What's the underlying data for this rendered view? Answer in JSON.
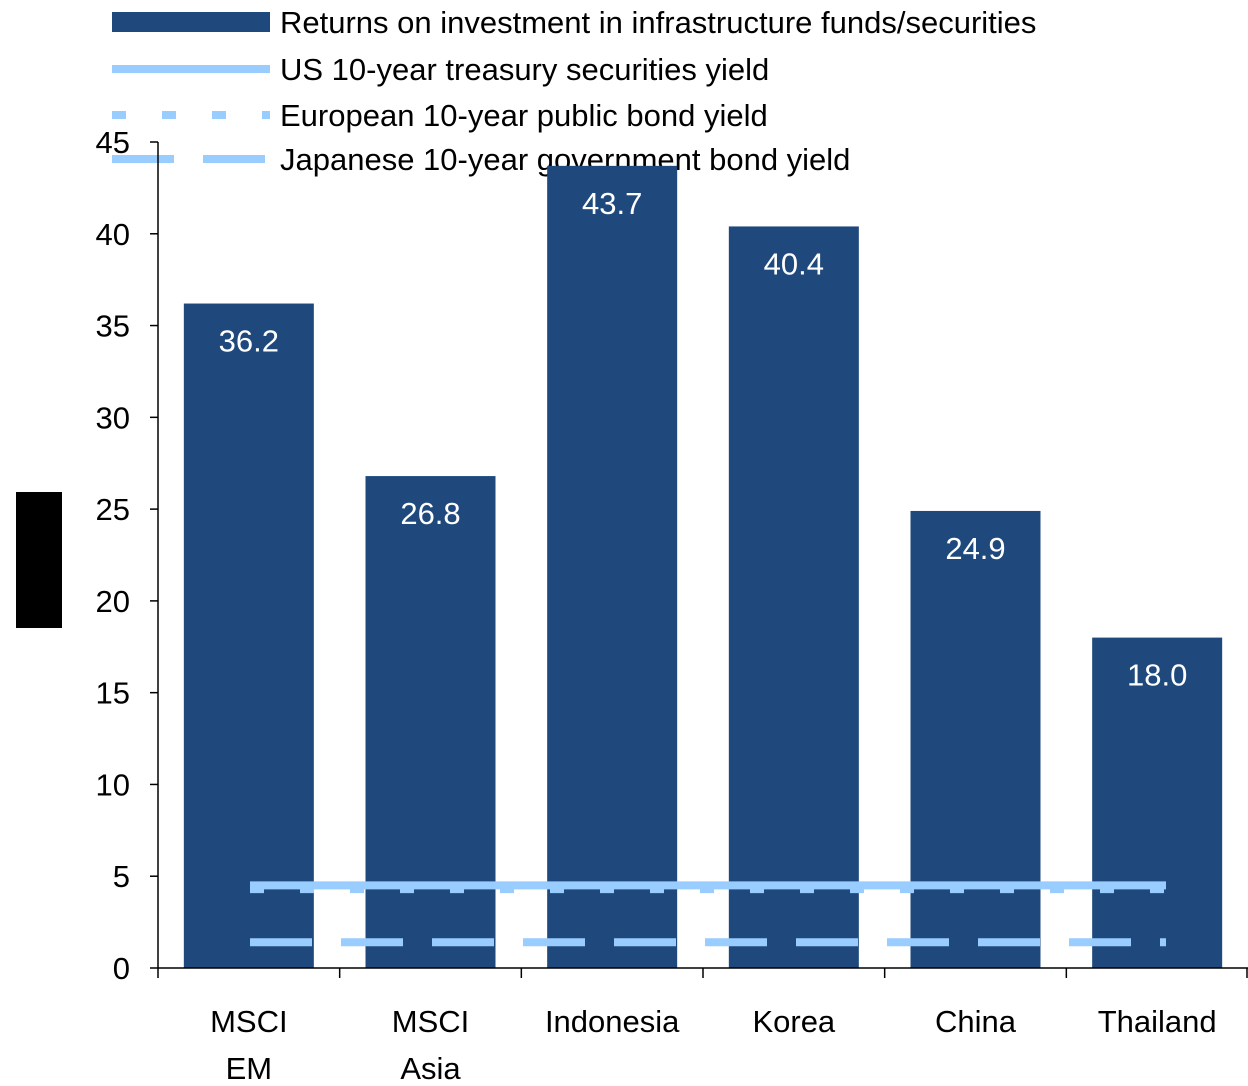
{
  "chart_data": {
    "type": "bar",
    "categories": [
      "MSCI EM",
      "MSCI Asia",
      "Indonesia",
      "Korea",
      "China",
      "Thailand"
    ],
    "category_lines": [
      [
        "MSCI",
        "EM"
      ],
      [
        "MSCI",
        "Asia"
      ],
      [
        "Indonesia"
      ],
      [
        "Korea"
      ],
      [
        "China"
      ],
      [
        "Thailand"
      ]
    ],
    "series": [
      {
        "name": "Returns on investment in infrastructure funds/securities",
        "kind": "bar",
        "color": "#1f497d",
        "values": [
          36.2,
          26.8,
          43.7,
          40.4,
          24.9,
          18.0
        ],
        "labels": [
          "36.2",
          "26.8",
          "43.7",
          "40.4",
          "24.9",
          "18.0"
        ]
      },
      {
        "name": "US 10-year treasury securities yield",
        "kind": "line",
        "style": "solid",
        "color": "#99ccff",
        "value": 4.5
      },
      {
        "name": "European 10-year public bond yield",
        "kind": "line",
        "style": "short-dash",
        "color": "#99ccff",
        "value": 4.3
      },
      {
        "name": "Japanese 10-year government bond yield",
        "kind": "line",
        "style": "long-dash",
        "color": "#99ccff",
        "value": 1.4
      }
    ],
    "ylim": [
      0,
      45
    ],
    "yticks": [
      0,
      5,
      10,
      15,
      20,
      25,
      30,
      35,
      40,
      45
    ],
    "grid": false,
    "legend_position": "top"
  }
}
